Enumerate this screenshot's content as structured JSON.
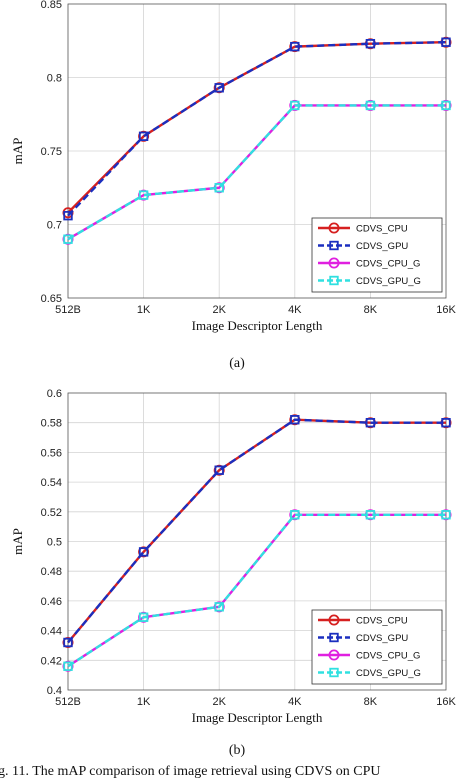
{
  "chart_data": [
    {
      "type": "line",
      "categories": [
        "512B",
        "1K",
        "2K",
        "4K",
        "8K",
        "16K"
      ],
      "xlabel": "Image Descriptor Length",
      "ylabel": "mAP",
      "ylim": [
        0.65,
        0.85
      ],
      "yticks": [
        "0.65",
        "0.7",
        "0.75",
        "0.8",
        "0.85"
      ],
      "grid": true,
      "legend_position": "lower-right",
      "subcaption": "(a)",
      "series": [
        {
          "name": "CDVS_CPU",
          "values": [
            0.708,
            0.76,
            0.793,
            0.821,
            0.823,
            0.824
          ],
          "color": "#d62020",
          "marker": "circle",
          "dash": "solid"
        },
        {
          "name": "CDVS_GPU",
          "values": [
            0.706,
            0.76,
            0.793,
            0.821,
            0.823,
            0.824
          ],
          "color": "#1b2fbf",
          "marker": "square",
          "dash": "dashed"
        },
        {
          "name": "CDVS_CPU_G",
          "values": [
            0.69,
            0.72,
            0.725,
            0.781,
            0.781,
            0.781
          ],
          "color": "#e020e0",
          "marker": "circle",
          "dash": "solid"
        },
        {
          "name": "CDVS_GPU_G",
          "values": [
            0.69,
            0.72,
            0.725,
            0.781,
            0.781,
            0.781
          ],
          "color": "#30e0e0",
          "marker": "square",
          "dash": "dashed"
        }
      ]
    },
    {
      "type": "line",
      "categories": [
        "512B",
        "1K",
        "2K",
        "4K",
        "8K",
        "16K"
      ],
      "xlabel": "Image Descriptor Length",
      "ylabel": "mAP",
      "ylim": [
        0.4,
        0.6
      ],
      "yticks": [
        "0.4",
        "0.42",
        "0.44",
        "0.46",
        "0.48",
        "0.5",
        "0.52",
        "0.54",
        "0.56",
        "0.58",
        "0.6"
      ],
      "grid": true,
      "legend_position": "lower-right",
      "subcaption": "(b)",
      "series": [
        {
          "name": "CDVS_CPU",
          "values": [
            0.432,
            0.493,
            0.548,
            0.582,
            0.58,
            0.58
          ],
          "color": "#d62020",
          "marker": "circle",
          "dash": "solid"
        },
        {
          "name": "CDVS_GPU",
          "values": [
            0.432,
            0.493,
            0.548,
            0.582,
            0.58,
            0.58
          ],
          "color": "#1b2fbf",
          "marker": "square",
          "dash": "dashed"
        },
        {
          "name": "CDVS_CPU_G",
          "values": [
            0.416,
            0.449,
            0.456,
            0.518,
            0.518,
            0.518
          ],
          "color": "#e020e0",
          "marker": "circle",
          "dash": "solid"
        },
        {
          "name": "CDVS_GPU_G",
          "values": [
            0.416,
            0.449,
            0.456,
            0.518,
            0.518,
            0.518
          ],
          "color": "#30e0e0",
          "marker": "square",
          "dash": "dashed"
        }
      ]
    }
  ],
  "caption": "g. 11.   The mAP comparison of image retrieval using CDVS on CPU"
}
